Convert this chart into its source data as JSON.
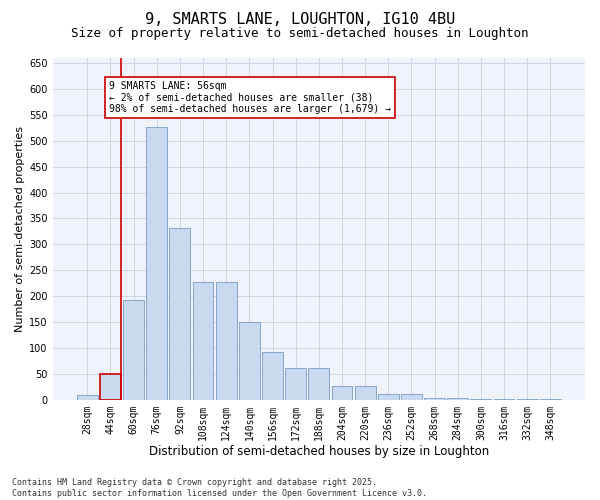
{
  "title": "9, SMARTS LANE, LOUGHTON, IG10 4BU",
  "subtitle": "Size of property relative to semi-detached houses in Loughton",
  "xlabel": "Distribution of semi-detached houses by size in Loughton",
  "ylabel": "Number of semi-detached properties",
  "categories": [
    "28sqm",
    "44sqm",
    "60sqm",
    "76sqm",
    "92sqm",
    "108sqm",
    "124sqm",
    "140sqm",
    "156sqm",
    "172sqm",
    "188sqm",
    "204sqm",
    "220sqm",
    "236sqm",
    "252sqm",
    "268sqm",
    "284sqm",
    "300sqm",
    "316sqm",
    "332sqm",
    "348sqm"
  ],
  "values": [
    10,
    50,
    193,
    527,
    332,
    228,
    228,
    151,
    93,
    63,
    63,
    27,
    27,
    12,
    12,
    5,
    5,
    2,
    2,
    3,
    3
  ],
  "bar_color": "#c9d9f0",
  "bar_edge_color": "#7a9cc4",
  "highlight_bar_index": 1,
  "vline_color": "#cc0000",
  "annotation_text": "9 SMARTS LANE: 56sqm\n← 2% of semi-detached houses are smaller (38)\n98% of semi-detached houses are larger (1,679) →",
  "annotation_box_color": "#ffffff",
  "annotation_box_edge": "#cc0000",
  "ylim": [
    0,
    660
  ],
  "yticks": [
    0,
    50,
    100,
    150,
    200,
    250,
    300,
    350,
    400,
    450,
    500,
    550,
    600,
    650
  ],
  "grid_color": "#c8d0e0",
  "background_color": "#f0f4fa",
  "footer_text": "Contains HM Land Registry data © Crown copyright and database right 2025.\nContains public sector information licensed under the Open Government Licence v3.0.",
  "title_fontsize": 11,
  "subtitle_fontsize": 9,
  "xlabel_fontsize": 8.5,
  "ylabel_fontsize": 8,
  "tick_fontsize": 7,
  "annotation_fontsize": 7,
  "footer_fontsize": 6
}
